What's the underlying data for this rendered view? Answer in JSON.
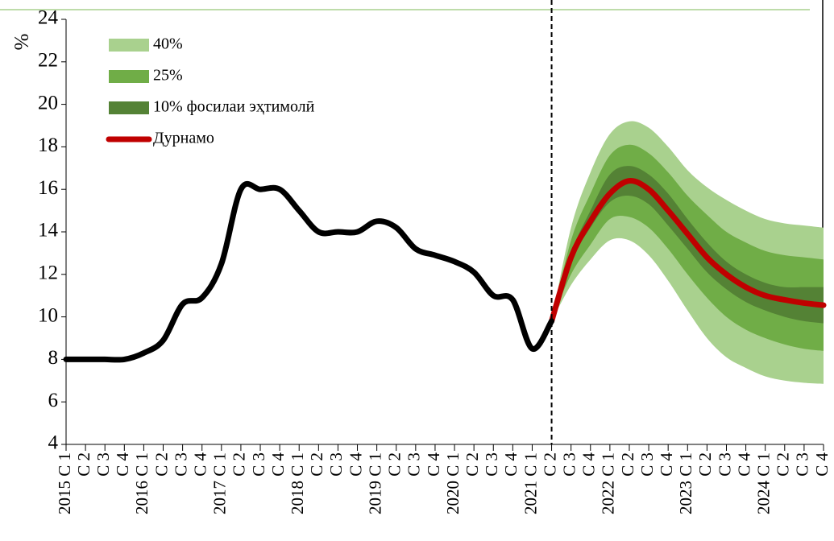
{
  "chart_data": {
    "type": "fan",
    "y_label": "%",
    "categories": [
      "2015 C 1",
      "C 2",
      "C 3",
      "C 4",
      "2016 C 1",
      "C 2",
      "C 3",
      "C 4",
      "2017 C 1",
      "C 2",
      "C 3",
      "C 4",
      "2018 C 1",
      "C 2",
      "C 3",
      "C 4",
      "2019 C 1",
      "C 2",
      "C 3",
      "C 4",
      "2020 C 1",
      "C 2",
      "C 3",
      "C 4",
      "2021 C 1",
      "C 2",
      "C 3",
      "C 4",
      "2022 C 1",
      "C 2",
      "C 3",
      "C 4",
      "2023 C 1",
      "C 2",
      "C 3",
      "C 4",
      "2024 C 1",
      "C 2",
      "C 3",
      "C 4"
    ],
    "ylim": [
      4,
      24
    ],
    "yticks": [
      4,
      6,
      8,
      10,
      12,
      14,
      16,
      18,
      20,
      22,
      24
    ],
    "series": [
      {
        "name": "40%",
        "color": "#a9d18e",
        "values": [
          null,
          null,
          null,
          null,
          null,
          null,
          null,
          null,
          null,
          null,
          null,
          null,
          null,
          null,
          null,
          null,
          null,
          null,
          null,
          null,
          null,
          null,
          null,
          null,
          null,
          9.8,
          14.2,
          16.8,
          18.6,
          19.2,
          18.9,
          18.0,
          16.9,
          16.1,
          15.5,
          15.0,
          14.6,
          14.4,
          14.3,
          14.2
        ],
        "lower": [
          null,
          null,
          null,
          null,
          null,
          null,
          null,
          null,
          null,
          null,
          null,
          null,
          null,
          null,
          null,
          null,
          null,
          null,
          null,
          null,
          null,
          null,
          null,
          null,
          null,
          9.8,
          11.5,
          12.7,
          13.6,
          13.6,
          12.9,
          11.7,
          10.3,
          9.0,
          8.1,
          7.6,
          7.2,
          7.0,
          6.9,
          6.85
        ]
      },
      {
        "name": "25%",
        "color": "#70ad47",
        "values": [
          null,
          null,
          null,
          null,
          null,
          null,
          null,
          null,
          null,
          null,
          null,
          null,
          null,
          null,
          null,
          null,
          null,
          null,
          null,
          null,
          null,
          null,
          null,
          null,
          null,
          9.8,
          13.6,
          15.8,
          17.6,
          18.1,
          17.7,
          16.8,
          15.7,
          14.8,
          14.0,
          13.5,
          13.1,
          12.9,
          12.8,
          12.7
        ],
        "lower": [
          null,
          null,
          null,
          null,
          null,
          null,
          null,
          null,
          null,
          null,
          null,
          null,
          null,
          null,
          null,
          null,
          null,
          null,
          null,
          null,
          null,
          null,
          null,
          null,
          null,
          9.8,
          12.0,
          13.4,
          14.6,
          14.7,
          14.2,
          13.2,
          12.0,
          10.9,
          10.0,
          9.4,
          9.0,
          8.7,
          8.5,
          8.4
        ]
      },
      {
        "name": "10% фосилаи эҳтимолӣ",
        "color": "#548235",
        "values": [
          null,
          null,
          null,
          null,
          null,
          null,
          null,
          null,
          null,
          null,
          null,
          null,
          null,
          null,
          null,
          null,
          null,
          null,
          null,
          null,
          null,
          null,
          null,
          null,
          null,
          9.8,
          13.0,
          15.0,
          16.7,
          17.1,
          16.7,
          15.8,
          14.6,
          13.5,
          12.6,
          12.0,
          11.6,
          11.4,
          11.4,
          11.4
        ],
        "lower": [
          null,
          null,
          null,
          null,
          null,
          null,
          null,
          null,
          null,
          null,
          null,
          null,
          null,
          null,
          null,
          null,
          null,
          null,
          null,
          null,
          null,
          null,
          null,
          null,
          null,
          9.8,
          12.6,
          14.2,
          15.4,
          15.7,
          15.3,
          14.3,
          13.2,
          12.1,
          11.3,
          10.7,
          10.3,
          10.0,
          9.8,
          9.7
        ]
      },
      {
        "name": "Дурнамо",
        "color": "#c00000",
        "values": [
          null,
          null,
          null,
          null,
          null,
          null,
          null,
          null,
          null,
          null,
          null,
          null,
          null,
          null,
          null,
          null,
          null,
          null,
          null,
          null,
          null,
          null,
          null,
          null,
          null,
          9.8,
          12.8,
          14.5,
          15.8,
          16.4,
          16.0,
          15.0,
          13.9,
          12.8,
          12.0,
          11.4,
          11.0,
          10.8,
          10.65,
          10.55
        ]
      },
      {
        "color": "#000000",
        "values": [
          8.0,
          8.0,
          8.0,
          8.0,
          8.3,
          8.9,
          10.6,
          10.9,
          12.5,
          16.0,
          16.0,
          16.0,
          15.0,
          14.0,
          14.0,
          14.0,
          14.5,
          14.2,
          13.2,
          12.9,
          12.6,
          12.1,
          11.0,
          10.8,
          8.5,
          9.8,
          null,
          null,
          null,
          null,
          null,
          null,
          null,
          null,
          null,
          null,
          null,
          null,
          null,
          null
        ]
      }
    ]
  }
}
